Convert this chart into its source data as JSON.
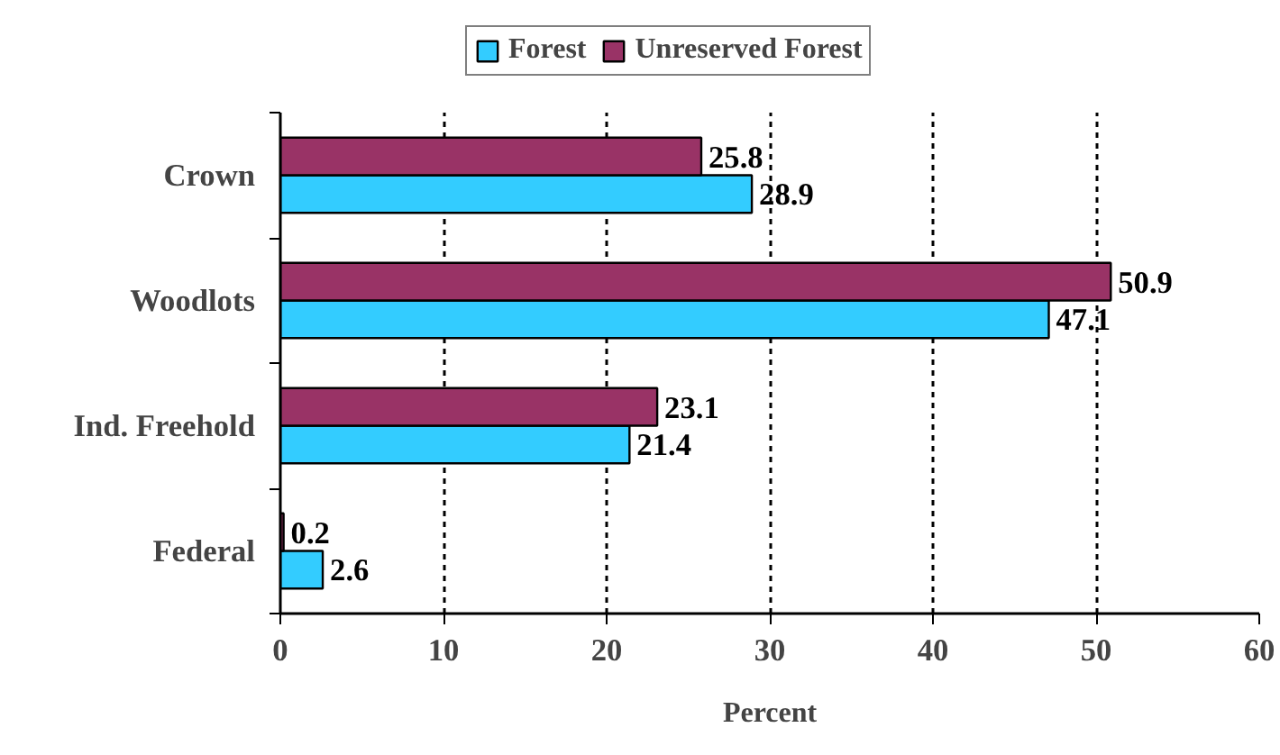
{
  "chart_data": {
    "type": "bar",
    "orientation": "horizontal",
    "xlabel": "Percent",
    "categories": [
      "Crown",
      "Woodlots",
      "Ind. Freehold",
      "Federal"
    ],
    "series": [
      {
        "name": "Forest",
        "color": "#33ccff",
        "values": [
          28.9,
          47.1,
          21.4,
          2.6
        ]
      },
      {
        "name": "Unreserved Forest",
        "color": "#993366",
        "values": [
          25.8,
          50.9,
          23.1,
          0.2
        ]
      }
    ],
    "xlim": [
      0,
      60
    ],
    "xticks": [
      0,
      10,
      20,
      30,
      40,
      50,
      60
    ],
    "grid": "x",
    "legend": "top",
    "data_labels": true
  }
}
